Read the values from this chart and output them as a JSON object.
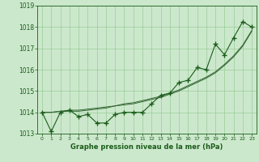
{
  "x": [
    0,
    1,
    2,
    3,
    4,
    5,
    6,
    7,
    8,
    9,
    10,
    11,
    12,
    13,
    14,
    15,
    16,
    17,
    18,
    19,
    20,
    21,
    22,
    23
  ],
  "y_main": [
    1014.0,
    1013.1,
    1014.0,
    1014.1,
    1013.8,
    1013.9,
    1013.5,
    1013.5,
    1013.9,
    1014.0,
    1014.0,
    1014.0,
    1014.4,
    1014.8,
    1014.9,
    1015.4,
    1015.5,
    1016.1,
    1016.0,
    1017.2,
    1016.7,
    1017.5,
    1018.25,
    1018.0
  ],
  "y_trend1": [
    1014.0,
    1014.0,
    1014.05,
    1014.05,
    1014.05,
    1014.1,
    1014.15,
    1014.2,
    1014.3,
    1014.35,
    1014.4,
    1014.5,
    1014.6,
    1014.7,
    1014.85,
    1015.0,
    1015.2,
    1015.4,
    1015.6,
    1015.85,
    1016.2,
    1016.6,
    1017.1,
    1017.8
  ],
  "y_trend2": [
    1014.0,
    1014.0,
    1014.05,
    1014.1,
    1014.1,
    1014.15,
    1014.2,
    1014.25,
    1014.3,
    1014.4,
    1014.45,
    1014.55,
    1014.65,
    1014.75,
    1014.9,
    1015.05,
    1015.25,
    1015.45,
    1015.65,
    1015.9,
    1016.25,
    1016.65,
    1017.15,
    1017.85
  ],
  "line_color": "#1a5c1a",
  "trend_color": "#336633",
  "bg_color": "#cce8cc",
  "grid_color": "#99cc99",
  "text_color": "#1a5c1a",
  "xlabel": "Graphe pression niveau de la mer (hPa)",
  "ylim": [
    1013.0,
    1019.0
  ],
  "xlim": [
    -0.5,
    23.5
  ],
  "yticks": [
    1013,
    1014,
    1015,
    1016,
    1017,
    1018,
    1019
  ],
  "xticks": [
    0,
    1,
    2,
    3,
    4,
    5,
    6,
    7,
    8,
    9,
    10,
    11,
    12,
    13,
    14,
    15,
    16,
    17,
    18,
    19,
    20,
    21,
    22,
    23
  ],
  "marker": "+",
  "markersize": 4,
  "markeredgewidth": 1.0,
  "linewidth": 0.8,
  "trend_linewidth": 0.7
}
